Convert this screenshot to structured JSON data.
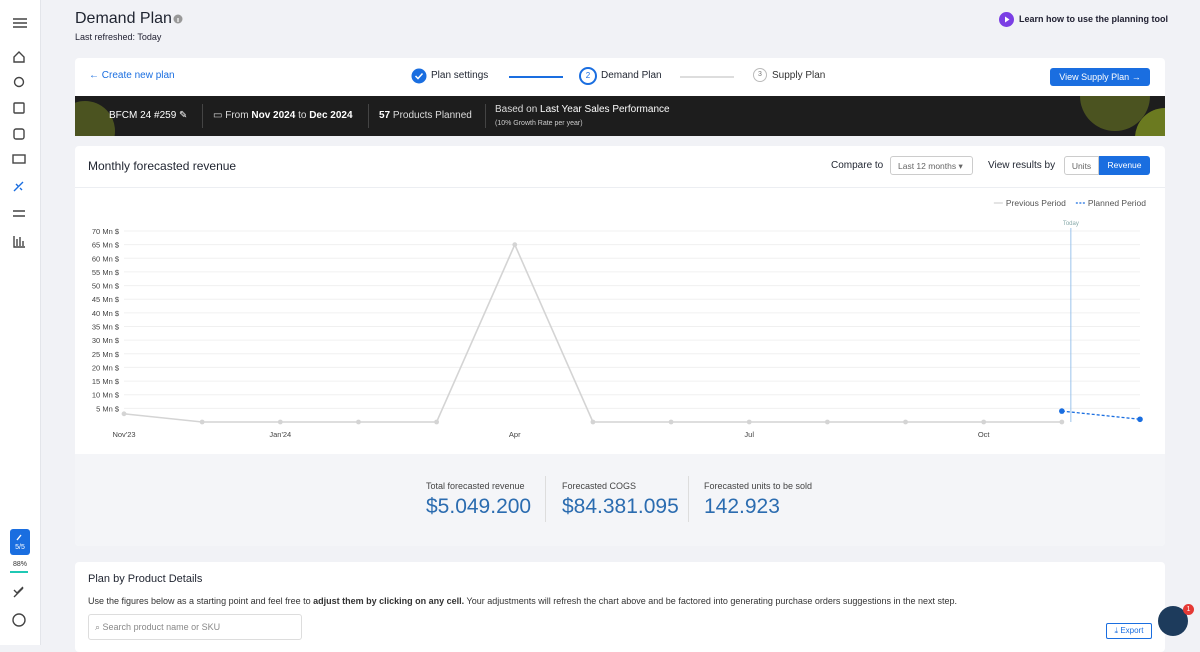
{
  "header": {
    "title": "Demand Plan",
    "subtitle": "Last refreshed: Today",
    "help_link": "Learn how to use the planning tool"
  },
  "stepper": {
    "back": "Create new plan",
    "steps": [
      {
        "label": "Plan settings"
      },
      {
        "number": 2,
        "label": "Demand Plan"
      },
      {
        "number": 3,
        "label": "Supply Plan"
      }
    ],
    "action": "View Supply Plan"
  },
  "banner": {
    "plan_name": "BFCM 24 #259",
    "from_label": "From",
    "from": "Nov 2024",
    "to_label": "to",
    "to": "Dec 2024",
    "products_count": 57,
    "products_label": "Products Planned",
    "basis_label": "Based on",
    "basis": "Last Year Sales Performance",
    "growth_note": "(10% Growth Rate per year)"
  },
  "panel": {
    "title": "Monthly forecasted revenue",
    "compare_label": "Compare to",
    "compare_value": "Last 12 months",
    "view_label": "View results by",
    "view_options": [
      "Units",
      "Revenue"
    ],
    "today_label": "Today"
  },
  "chart_data": {
    "type": "line",
    "categories": [
      "Nov'23",
      null,
      "Jan'24",
      null,
      null,
      "Apr",
      null,
      null,
      "Jul",
      null,
      null,
      "Oct",
      null,
      null
    ],
    "series": [
      {
        "name": "Previous Period",
        "color": "#d4d4d4",
        "dash": false,
        "values": [
          3,
          0,
          0,
          0,
          0,
          65,
          0,
          0,
          0,
          0,
          0,
          0,
          0,
          null
        ]
      },
      {
        "name": "Planned Period",
        "color": "#1a6ee0",
        "dash": true,
        "values": [
          null,
          null,
          null,
          null,
          null,
          null,
          null,
          null,
          null,
          null,
          null,
          null,
          4,
          1
        ]
      }
    ],
    "ylim": [
      0,
      70
    ],
    "yticks": [
      {
        "value": 5,
        "label": "5 Mn $"
      },
      {
        "value": 10,
        "label": "10 Mn $"
      },
      {
        "value": 15,
        "label": "15 Mn $"
      },
      {
        "value": 20,
        "label": "20 Mn $"
      },
      {
        "value": 25,
        "label": "25 Mn $"
      },
      {
        "value": 30,
        "label": "30 Mn $"
      },
      {
        "value": 35,
        "label": "35 Mn $"
      },
      {
        "value": 40,
        "label": "40 Mn $"
      },
      {
        "value": 45,
        "label": "45 Mn $"
      },
      {
        "value": 50,
        "label": "50 Mn $"
      },
      {
        "value": 55,
        "label": "55 Mn $"
      },
      {
        "value": 60,
        "label": "60 Mn $"
      },
      {
        "value": 65,
        "label": "65 Mn $"
      },
      {
        "value": 70,
        "label": "70 Mn $"
      }
    ],
    "grid": true,
    "legend": "top-right"
  },
  "kpis": [
    {
      "label": "Total forecasted revenue",
      "value": "$5.049.200"
    },
    {
      "label": "Forecasted COGS",
      "value": "$84.381.095"
    },
    {
      "label": "Forecasted units to be sold",
      "value": "142.923"
    }
  ],
  "details": {
    "title": "Plan by Product Details",
    "description": [
      "Use the figures below as a starting point and feel free to ",
      "adjust them by clicking on any cell.",
      " Your adjustments will refresh the chart above and be factored into generating purchase orders suggestions in the next step."
    ],
    "search_placeholder": "Search product name or SKU",
    "export": "Export"
  },
  "sidebar": {
    "progress": "5/5",
    "percent": "88%"
  },
  "chat_badge": 1
}
